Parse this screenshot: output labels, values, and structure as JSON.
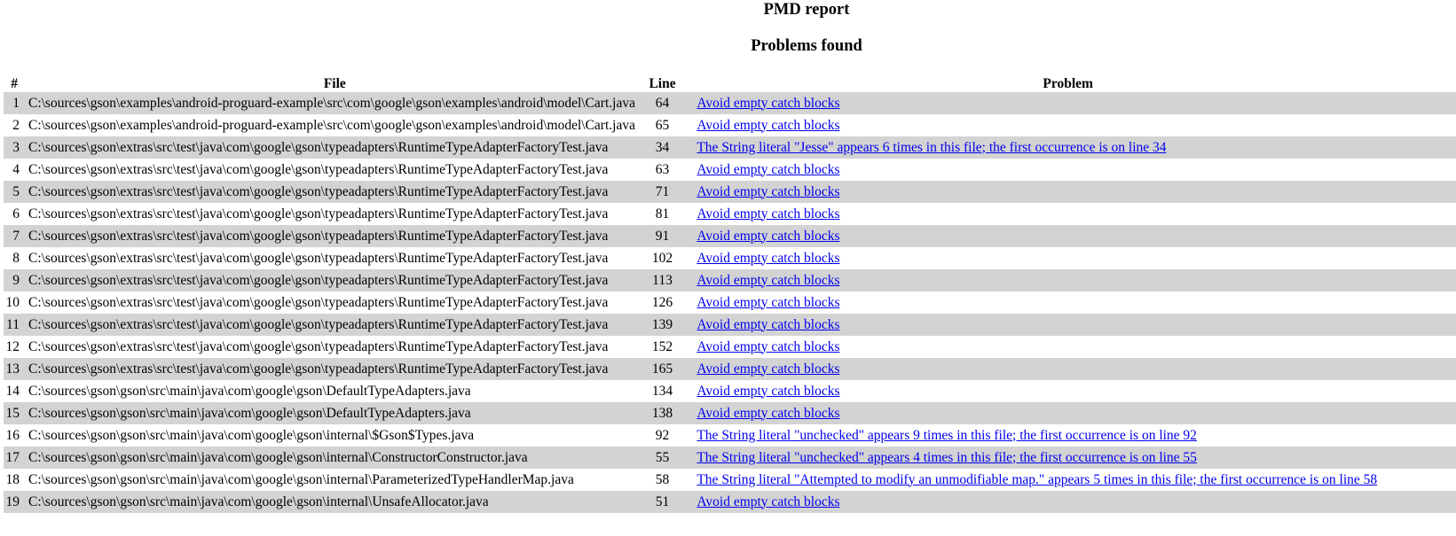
{
  "report": {
    "title": "PMD report",
    "subtitle": "Problems found"
  },
  "table": {
    "headers": {
      "num": "#",
      "file": "File",
      "line": "Line",
      "problem": "Problem"
    },
    "rows": [
      {
        "num": "1",
        "file": "C:\\sources\\gson\\examples\\android-proguard-example\\src\\com\\google\\gson\\examples\\android\\model\\Cart.java",
        "line": "64",
        "problem": "Avoid empty catch blocks"
      },
      {
        "num": "2",
        "file": "C:\\sources\\gson\\examples\\android-proguard-example\\src\\com\\google\\gson\\examples\\android\\model\\Cart.java",
        "line": "65",
        "problem": "Avoid empty catch blocks"
      },
      {
        "num": "3",
        "file": "C:\\sources\\gson\\extras\\src\\test\\java\\com\\google\\gson\\typeadapters\\RuntimeTypeAdapterFactoryTest.java",
        "line": "34",
        "problem": "The String literal \"Jesse\" appears 6 times in this file; the first occurrence is on line 34"
      },
      {
        "num": "4",
        "file": "C:\\sources\\gson\\extras\\src\\test\\java\\com\\google\\gson\\typeadapters\\RuntimeTypeAdapterFactoryTest.java",
        "line": "63",
        "problem": "Avoid empty catch blocks"
      },
      {
        "num": "5",
        "file": "C:\\sources\\gson\\extras\\src\\test\\java\\com\\google\\gson\\typeadapters\\RuntimeTypeAdapterFactoryTest.java",
        "line": "71",
        "problem": "Avoid empty catch blocks"
      },
      {
        "num": "6",
        "file": "C:\\sources\\gson\\extras\\src\\test\\java\\com\\google\\gson\\typeadapters\\RuntimeTypeAdapterFactoryTest.java",
        "line": "81",
        "problem": "Avoid empty catch blocks"
      },
      {
        "num": "7",
        "file": "C:\\sources\\gson\\extras\\src\\test\\java\\com\\google\\gson\\typeadapters\\RuntimeTypeAdapterFactoryTest.java",
        "line": "91",
        "problem": "Avoid empty catch blocks"
      },
      {
        "num": "8",
        "file": "C:\\sources\\gson\\extras\\src\\test\\java\\com\\google\\gson\\typeadapters\\RuntimeTypeAdapterFactoryTest.java",
        "line": "102",
        "problem": "Avoid empty catch blocks"
      },
      {
        "num": "9",
        "file": "C:\\sources\\gson\\extras\\src\\test\\java\\com\\google\\gson\\typeadapters\\RuntimeTypeAdapterFactoryTest.java",
        "line": "113",
        "problem": "Avoid empty catch blocks"
      },
      {
        "num": "10",
        "file": "C:\\sources\\gson\\extras\\src\\test\\java\\com\\google\\gson\\typeadapters\\RuntimeTypeAdapterFactoryTest.java",
        "line": "126",
        "problem": "Avoid empty catch blocks"
      },
      {
        "num": "11",
        "file": "C:\\sources\\gson\\extras\\src\\test\\java\\com\\google\\gson\\typeadapters\\RuntimeTypeAdapterFactoryTest.java",
        "line": "139",
        "problem": "Avoid empty catch blocks"
      },
      {
        "num": "12",
        "file": "C:\\sources\\gson\\extras\\src\\test\\java\\com\\google\\gson\\typeadapters\\RuntimeTypeAdapterFactoryTest.java",
        "line": "152",
        "problem": "Avoid empty catch blocks"
      },
      {
        "num": "13",
        "file": "C:\\sources\\gson\\extras\\src\\test\\java\\com\\google\\gson\\typeadapters\\RuntimeTypeAdapterFactoryTest.java",
        "line": "165",
        "problem": "Avoid empty catch blocks"
      },
      {
        "num": "14",
        "file": "C:\\sources\\gson\\gson\\src\\main\\java\\com\\google\\gson\\DefaultTypeAdapters.java",
        "line": "134",
        "problem": "Avoid empty catch blocks"
      },
      {
        "num": "15",
        "file": "C:\\sources\\gson\\gson\\src\\main\\java\\com\\google\\gson\\DefaultTypeAdapters.java",
        "line": "138",
        "problem": "Avoid empty catch blocks"
      },
      {
        "num": "16",
        "file": "C:\\sources\\gson\\gson\\src\\main\\java\\com\\google\\gson\\internal\\$Gson$Types.java",
        "line": "92",
        "problem": "The String literal \"unchecked\" appears 9 times in this file; the first occurrence is on line 92"
      },
      {
        "num": "17",
        "file": "C:\\sources\\gson\\gson\\src\\main\\java\\com\\google\\gson\\internal\\ConstructorConstructor.java",
        "line": "55",
        "problem": "The String literal \"unchecked\" appears 4 times in this file; the first occurrence is on line 55"
      },
      {
        "num": "18",
        "file": "C:\\sources\\gson\\gson\\src\\main\\java\\com\\google\\gson\\internal\\ParameterizedTypeHandlerMap.java",
        "line": "58",
        "problem": "The String literal \"Attempted to modify an unmodifiable map.\" appears 5 times in this file; the first occurrence is on line 58"
      },
      {
        "num": "19",
        "file": "C:\\sources\\gson\\gson\\src\\main\\java\\com\\google\\gson\\internal\\UnsafeAllocator.java",
        "line": "51",
        "problem": "Avoid empty catch blocks"
      }
    ]
  },
  "colors": {
    "odd_row": "#d3d3d3",
    "even_row": "#ffffff",
    "link": "#0000ee"
  }
}
